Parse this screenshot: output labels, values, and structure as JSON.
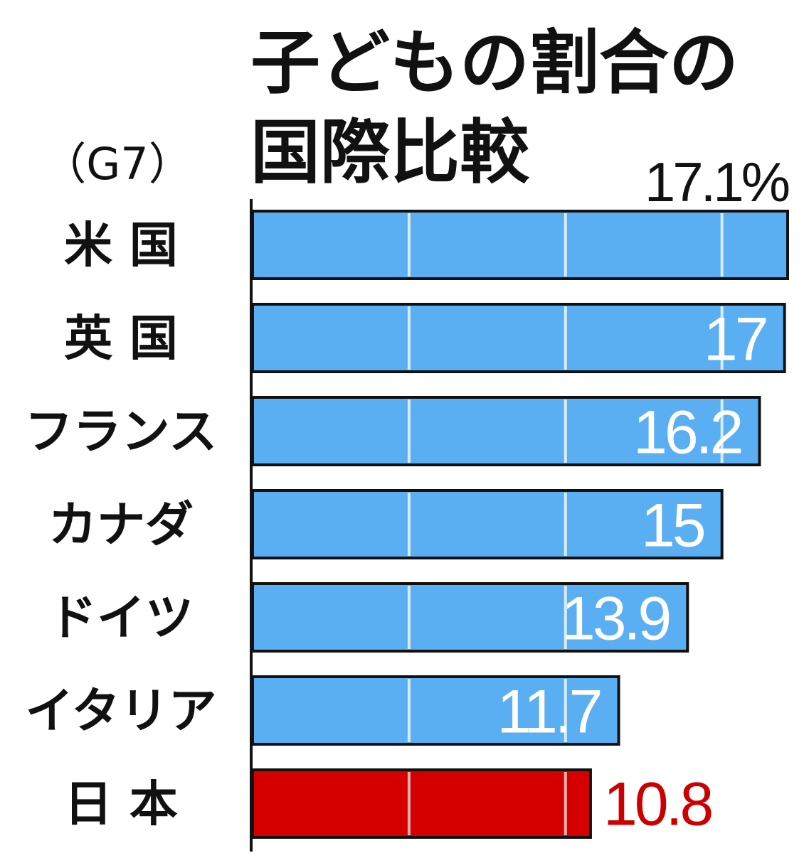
{
  "chart_data": {
    "type": "bar",
    "orientation": "horizontal",
    "title": "子どもの割合の国際比較",
    "title_lines": [
      "子どもの割合の",
      "国際比較"
    ],
    "subtitle": "（G7）",
    "categories": [
      "米 国",
      "英 国",
      "フランス",
      "カナダ",
      "ドイツ",
      "イタリア",
      "日 本"
    ],
    "values": [
      17.1,
      17,
      16.2,
      15,
      13.9,
      11.7,
      10.8
    ],
    "value_labels": [
      "17.1%",
      "17",
      "16.2",
      "15",
      "13.9",
      "11.7",
      "10.8"
    ],
    "unit": "%",
    "xlim": [
      0,
      17.1
    ],
    "grid": true,
    "grid_values": [
      5,
      10,
      15
    ],
    "colors": {
      "bar": "#5aaef2",
      "highlight_bar": "#d40000",
      "highlight_label": "#cc0000",
      "bar_border": "#111111",
      "label_inside": "#ffffff",
      "label_outside": "#111111"
    },
    "highlight_index": 6
  }
}
